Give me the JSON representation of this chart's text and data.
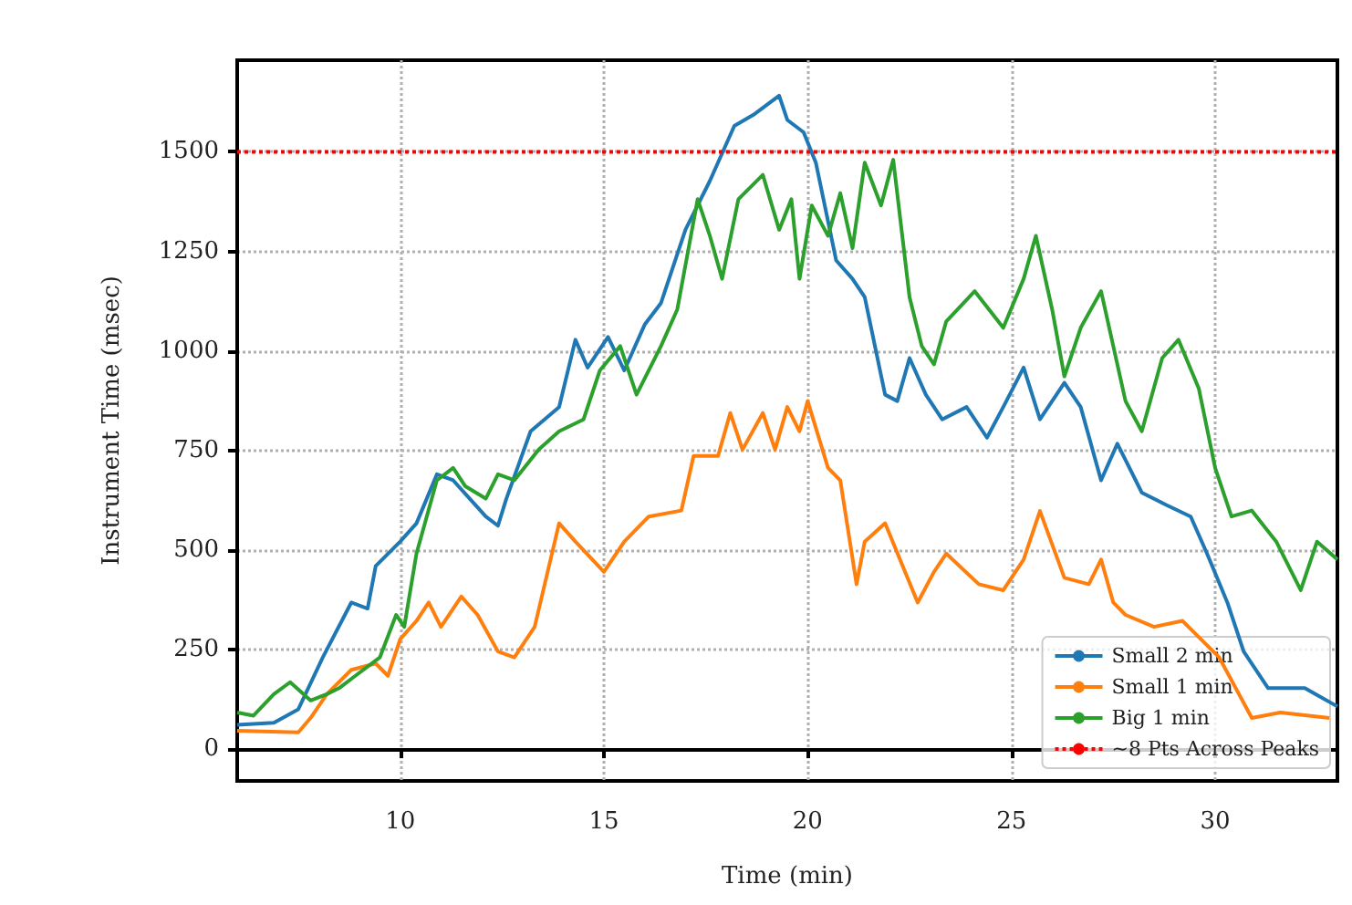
{
  "chart_data": {
    "type": "line",
    "xlabel": "Time (min)",
    "ylabel": "Instrument Time (msec)",
    "xlim": [
      6,
      33
    ],
    "xticks": [
      10,
      15,
      20,
      25,
      30
    ],
    "ylim": [
      -80,
      1730
    ],
    "yticks": [
      0,
      250,
      500,
      750,
      1000,
      1250,
      1500
    ],
    "grid": true,
    "legend": "bottom right",
    "line_style": "solid",
    "marker": "none",
    "series": [
      {
        "name": "Small 2 min",
        "color": "#1f77b4",
        "x": [
          6,
          6.9,
          7.5,
          8.1,
          8.8,
          9.2,
          9.4,
          10,
          10.4,
          10.9,
          11.3,
          12.1,
          12.4,
          12.6,
          13.2,
          13.9,
          14.3,
          14.6,
          15.1,
          15.5,
          16,
          16.4,
          16.8,
          17,
          17.6,
          18.2,
          18.7,
          19.3,
          19.5,
          19.9,
          20.2,
          20.7,
          21.1,
          21.4,
          21.9,
          22.2,
          22.5,
          22.9,
          23.3,
          23.9,
          24.4,
          24.8,
          25.3,
          25.7,
          26.3,
          26.7,
          27.2,
          27.6,
          28.2,
          28.8,
          29.4,
          29.8,
          30.3,
          30.7,
          31.3,
          32.2,
          33
        ],
        "values": [
          61,
          66,
          100,
          230,
          368,
          353,
          460,
          521,
          567,
          690,
          675,
          584,
          561,
          627,
          798,
          859,
          1028,
          958,
          1035,
          951,
          1066,
          1120,
          1243,
          1304,
          1427,
          1565,
          1595,
          1641,
          1580,
          1549,
          1473,
          1227,
          1181,
          1135,
          890,
          874,
          982,
          890,
          828,
          859,
          782,
          859,
          958,
          828,
          920,
          859,
          675,
          767,
          644,
          613,
          584,
          491,
          368,
          245,
          153,
          153,
          107
        ]
      },
      {
        "name": "Small 1 min",
        "color": "#ff7f0e",
        "x": [
          6,
          7.5,
          7.8,
          8.2,
          8.8,
          9.4,
          9.7,
          10,
          10.4,
          10.7,
          11,
          11.5,
          11.9,
          12.4,
          12.8,
          13.3,
          13.9,
          14.3,
          15,
          15.5,
          16.1,
          16.9,
          17.2,
          17.8,
          18.1,
          18.4,
          18.9,
          19.2,
          19.5,
          19.8,
          20,
          20.5,
          20.8,
          21.2,
          21.4,
          21.9,
          22.7,
          23.1,
          23.4,
          24.2,
          24.8,
          25.3,
          25.7,
          26.3,
          26.9,
          27.2,
          27.5,
          27.8,
          28.5,
          29.2,
          30.1,
          30.9,
          31.6,
          32.8
        ],
        "values": [
          46,
          42,
          78,
          138,
          199,
          215,
          184,
          276,
          322,
          368,
          307,
          383,
          337,
          245,
          230,
          307,
          567,
          521,
          445,
          521,
          584,
          599,
          736,
          736,
          844,
          752,
          844,
          752,
          859,
          798,
          874,
          706,
          675,
          414,
          521,
          567,
          368,
          445,
          491,
          414,
          399,
          476,
          598,
          430,
          414,
          476,
          368,
          337,
          307,
          322,
          230,
          78,
          92,
          78
        ]
      },
      {
        "name": "Big 1 min",
        "color": "#2ca02c",
        "x": [
          6,
          6.4,
          6.9,
          7.3,
          7.8,
          8.2,
          8.5,
          8.9,
          9.5,
          9.9,
          10.1,
          10.4,
          10.9,
          11.3,
          11.6,
          12.1,
          12.4,
          12.8,
          13.4,
          13.9,
          14.5,
          14.9,
          15.4,
          15.8,
          16.4,
          16.8,
          17.3,
          17.6,
          17.9,
          18.3,
          18.9,
          19.3,
          19.6,
          19.8,
          20.1,
          20.5,
          20.8,
          21.1,
          21.4,
          21.8,
          22.1,
          22.5,
          22.8,
          23.1,
          23.4,
          24.1,
          24.8,
          25.3,
          25.6,
          26,
          26.3,
          26.7,
          27.2,
          27.8,
          28.2,
          28.7,
          29.1,
          29.6,
          30,
          30.4,
          30.9,
          31.5,
          32.1,
          32.5,
          33
        ],
        "values": [
          92,
          84,
          138,
          168,
          122,
          138,
          153,
          184,
          230,
          337,
          307,
          491,
          675,
          706,
          660,
          629,
          690,
          675,
          752,
          798,
          828,
          951,
          1012,
          890,
          1012,
          1104,
          1381,
          1289,
          1181,
          1381,
          1442,
          1304,
          1381,
          1181,
          1365,
          1289,
          1396,
          1258,
          1473,
          1365,
          1480,
          1135,
          1012,
          966,
          1074,
          1150,
          1058,
          1181,
          1289,
          1104,
          936,
          1058,
          1150,
          874,
          798,
          982,
          1028,
          905,
          706,
          584,
          599,
          521,
          399,
          521,
          476
        ]
      }
    ],
    "ref_lines": [
      {
        "axis": "y",
        "value": 1500,
        "label": "~8 Pts Across Peaks",
        "color": "#ff0000",
        "line_style": "dotted"
      }
    ]
  }
}
